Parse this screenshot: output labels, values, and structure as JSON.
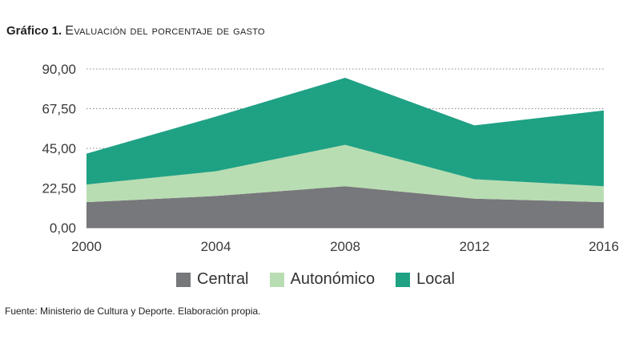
{
  "title": {
    "lead": "Gráfico 1.",
    "text": "Evaluación del porcentaje de gasto"
  },
  "chart_data": {
    "type": "area",
    "stacked": true,
    "x": [
      "2000",
      "2004",
      "2008",
      "2012",
      "2016"
    ],
    "series": [
      {
        "name": "Central",
        "values": [
          14.5,
          18,
          23.5,
          16.5,
          14.5
        ],
        "color": "#77787b"
      },
      {
        "name": "Autonómico",
        "values": [
          10,
          14,
          23.5,
          11,
          9
        ],
        "color": "#b9ddb2"
      },
      {
        "name": "Local",
        "values": [
          17.5,
          31,
          38,
          30.5,
          43
        ],
        "color": "#1fa184"
      }
    ],
    "ylim": [
      0,
      90
    ],
    "yticks": [
      0,
      22.5,
      45,
      67.5,
      90
    ],
    "ytick_labels": [
      "0,00",
      "22,50",
      "45,00",
      "67,50",
      "90,00"
    ],
    "grid": "horizontal dotted",
    "legend_position": "bottom-center",
    "xlabel": "",
    "ylabel": ""
  },
  "legend": [
    {
      "label": "Central",
      "color": "#77787b"
    },
    {
      "label": "Autonómico",
      "color": "#b9ddb2"
    },
    {
      "label": "Local",
      "color": "#1fa184"
    }
  ],
  "source": "Fuente: Ministerio de Cultura y Deporte. Elaboración propia."
}
